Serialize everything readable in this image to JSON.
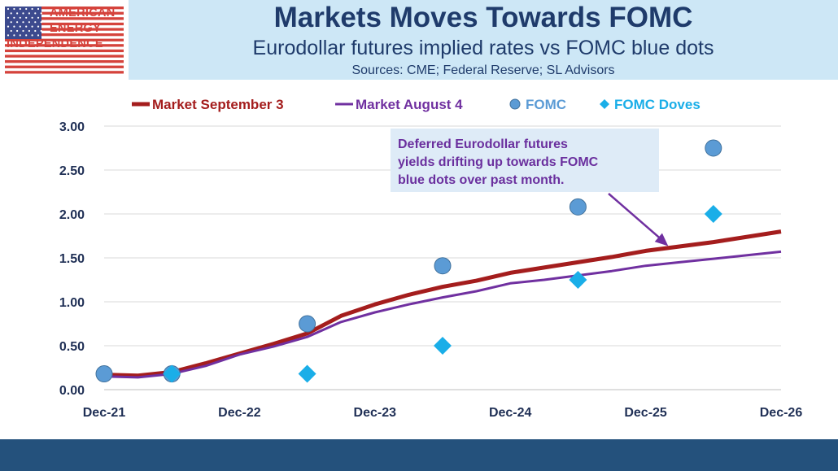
{
  "logo": {
    "line1": "AMERICAN",
    "line2": "ENERGY",
    "line3": "INDEPENDENCE"
  },
  "header": {
    "title": "Markets Moves Towards FOMC",
    "subtitle": "Eurodollar futures implied rates vs FOMC blue dots",
    "sources": "Sources: CME; Federal Reserve; SL Advisors"
  },
  "colors": {
    "market_sep": "#a41d1d",
    "market_aug": "#7030a0",
    "fomc": "#5b9bd5",
    "fomc_doves": "#1aaee8",
    "title_band": "#cde7f6",
    "footer": "#24517c"
  },
  "chart_data": {
    "type": "line",
    "x_tick_labels": [
      "Dec-21",
      "Dec-22",
      "Dec-23",
      "Dec-24",
      "Dec-25",
      "Dec-26"
    ],
    "xlim": [
      0,
      60
    ],
    "x_unit": "months from Dec-21",
    "ylim": [
      0,
      3
    ],
    "y_ticks": [
      "0.00",
      "0.50",
      "1.00",
      "1.50",
      "2.00",
      "2.50",
      "3.00"
    ],
    "grid": true,
    "legend_position": "top",
    "series": [
      {
        "name": "Market September 3",
        "kind": "line",
        "color": "#a41d1d",
        "x": [
          0,
          3,
          6,
          9,
          12,
          15,
          18,
          21,
          24,
          27,
          30,
          33,
          36,
          39,
          42,
          45,
          48,
          51,
          54,
          57,
          60
        ],
        "y": [
          0.17,
          0.16,
          0.2,
          0.3,
          0.41,
          0.52,
          0.64,
          0.84,
          0.97,
          1.08,
          1.17,
          1.24,
          1.33,
          1.39,
          1.45,
          1.51,
          1.58,
          1.63,
          1.68,
          1.74,
          1.8
        ]
      },
      {
        "name": "Market August 4",
        "kind": "line",
        "color": "#7030a0",
        "x": [
          0,
          3,
          6,
          9,
          12,
          15,
          18,
          21,
          24,
          27,
          30,
          33,
          36,
          39,
          42,
          45,
          48,
          51,
          54,
          57,
          60
        ],
        "y": [
          0.15,
          0.14,
          0.18,
          0.27,
          0.4,
          0.49,
          0.6,
          0.77,
          0.88,
          0.97,
          1.05,
          1.12,
          1.21,
          1.25,
          1.3,
          1.35,
          1.41,
          1.45,
          1.49,
          1.53,
          1.57
        ]
      },
      {
        "name": "FOMC",
        "kind": "circle",
        "color": "#5b9bd5",
        "x": [
          0,
          6,
          18,
          30,
          42,
          54
        ],
        "y": [
          0.18,
          0.18,
          0.75,
          1.41,
          2.08,
          2.75
        ]
      },
      {
        "name": "FOMC Doves",
        "kind": "diamond",
        "color": "#1aaee8",
        "x": [
          6,
          18,
          30,
          42,
          54
        ],
        "y": [
          0.18,
          0.18,
          0.5,
          1.25,
          2.0
        ]
      }
    ],
    "annotation": {
      "lines": [
        "Deferred Eurodollar futures",
        "yields drifting up towards FOMC",
        "blue dots over past month."
      ],
      "arrow_target": {
        "x": 50,
        "y": 1.57
      }
    }
  }
}
